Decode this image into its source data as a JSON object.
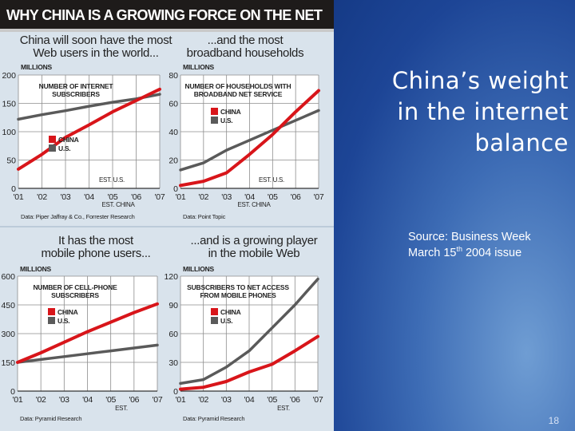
{
  "figure": {
    "header_title": "WHY CHINA IS A GROWING FORCE ON THE NET",
    "colors": {
      "china": "#d8151a",
      "us": "#5a5a5a",
      "panel_bg": "#ffffff",
      "header_bg": "#1e1b1a",
      "grid": "#8d8d8d"
    },
    "legend": {
      "china": "CHINA",
      "us": "U.S."
    }
  },
  "chart_data": [
    {
      "type": "line",
      "heading": [
        "China will soon have the most",
        "Web users in the world..."
      ],
      "unit": "MILLIONS",
      "inner_title": [
        "NUMBER OF INTERNET",
        "SUBSCRIBERS"
      ],
      "categories": [
        "'01",
        "'02",
        "'03",
        "'04",
        "'05",
        "'06",
        "'07"
      ],
      "yticks": [
        "0",
        "50",
        "100",
        "150",
        "200"
      ],
      "ylim": [
        0,
        200
      ],
      "series": [
        {
          "name": "CHINA",
          "values": [
            34,
            60,
            90,
            112,
            135,
            155,
            175
          ]
        },
        {
          "name": "U.S.",
          "values": [
            122,
            130,
            137,
            145,
            152,
            158,
            166
          ]
        }
      ],
      "est_labels": [
        "EST. U.S.",
        "EST. CHINA"
      ],
      "source": "Data: Piper Jaffray & Co., Forrester Research"
    },
    {
      "type": "line",
      "heading": [
        "...and the most",
        "broadband households"
      ],
      "unit": "MILLIONS",
      "inner_title": [
        "NUMBER OF HOUSEHOLDS WITH",
        "BROADBAND NET SERVICE"
      ],
      "categories": [
        "'01",
        "'02",
        "'03",
        "'04",
        "'05",
        "'06",
        "'07"
      ],
      "yticks": [
        "0",
        "20",
        "40",
        "60",
        "80"
      ],
      "ylim": [
        0,
        80
      ],
      "series": [
        {
          "name": "CHINA",
          "values": [
            2,
            5,
            11,
            24,
            38,
            54,
            69
          ]
        },
        {
          "name": "U.S.",
          "values": [
            13,
            18,
            27,
            34,
            41,
            48,
            55
          ]
        }
      ],
      "est_labels": [
        "EST. U.S.",
        "EST. CHINA"
      ],
      "source": "Data: Point Topic"
    },
    {
      "type": "line",
      "heading": [
        "It has the most",
        "mobile phone users..."
      ],
      "unit": "MILLIONS",
      "inner_title": [
        "NUMBER OF CELL-PHONE",
        "SUBSCRIBERS"
      ],
      "categories": [
        "'01",
        "'02",
        "'03",
        "'04",
        "'05",
        "'06",
        "'07"
      ],
      "yticks": [
        "0",
        "150",
        "300",
        "450",
        "600"
      ],
      "ylim": [
        0,
        600
      ],
      "series": [
        {
          "name": "CHINA",
          "values": [
            150,
            200,
            255,
            310,
            360,
            410,
            455
          ]
        },
        {
          "name": "U.S.",
          "values": [
            150,
            165,
            180,
            195,
            210,
            225,
            240
          ]
        }
      ],
      "est_labels": [
        "EST."
      ],
      "source": "Data: Pyramid Research"
    },
    {
      "type": "line",
      "heading": [
        "...and is a growing player",
        "in the mobile Web"
      ],
      "unit": "MILLIONS",
      "inner_title": [
        "SUBSCRIBERS TO NET ACCESS",
        "FROM MOBILE PHONES"
      ],
      "categories": [
        "'01",
        "'02",
        "'03",
        "'04",
        "'05",
        "'06",
        "'07"
      ],
      "yticks": [
        "0",
        "30",
        "60",
        "90",
        "120"
      ],
      "ylim": [
        0,
        120
      ],
      "series": [
        {
          "name": "CHINA",
          "values": [
            2,
            4,
            10,
            20,
            28,
            42,
            57
          ]
        },
        {
          "name": "U.S.",
          "values": [
            8,
            12,
            25,
            42,
            66,
            90,
            117
          ]
        }
      ],
      "est_labels": [
        "EST."
      ],
      "source": "Data: Pyramid Research"
    }
  ],
  "slide": {
    "title_lines": [
      "China’s weight",
      "in the internet",
      "balance"
    ],
    "source_line1": "Source: Business Week",
    "source_line2_prefix": "March 15",
    "source_line2_sup": "th",
    "source_line2_suffix": " 2004 issue",
    "page_number": "18"
  }
}
